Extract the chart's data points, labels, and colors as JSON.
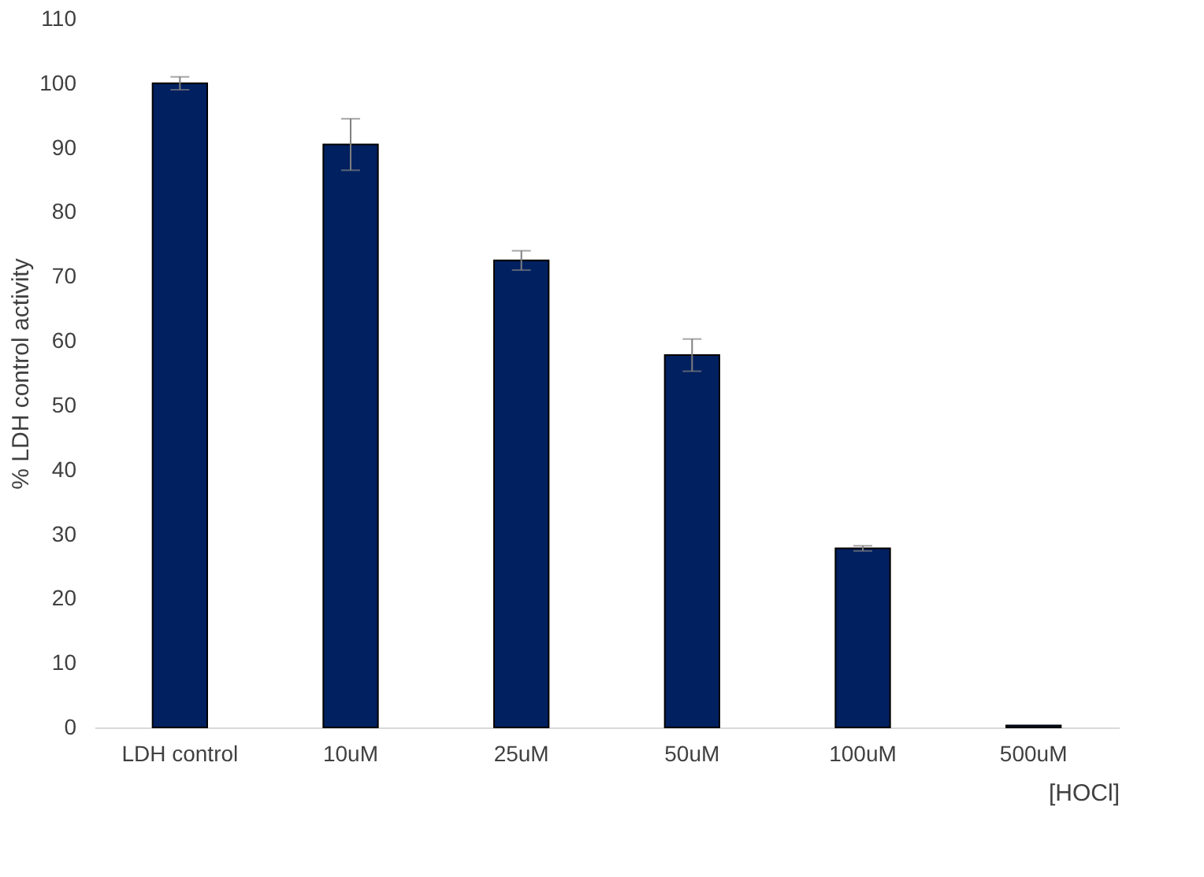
{
  "chart_data": {
    "type": "bar",
    "xlabel": "[HOCl]",
    "ylabel": "% LDH control activity",
    "categories": [
      "LDH control",
      "10uM",
      "25uM",
      "50uM",
      "100uM",
      "500uM"
    ],
    "values": [
      100,
      90.5,
      72.5,
      57.8,
      27.8,
      0.3
    ],
    "errors": [
      1,
      4,
      1.5,
      2.5,
      0.4,
      null
    ],
    "color": "#002060",
    "ylim": [
      0,
      110
    ],
    "yticks": [
      0,
      10,
      20,
      30,
      40,
      50,
      60,
      70,
      80,
      90,
      100,
      110
    ],
    "grid": false
  }
}
